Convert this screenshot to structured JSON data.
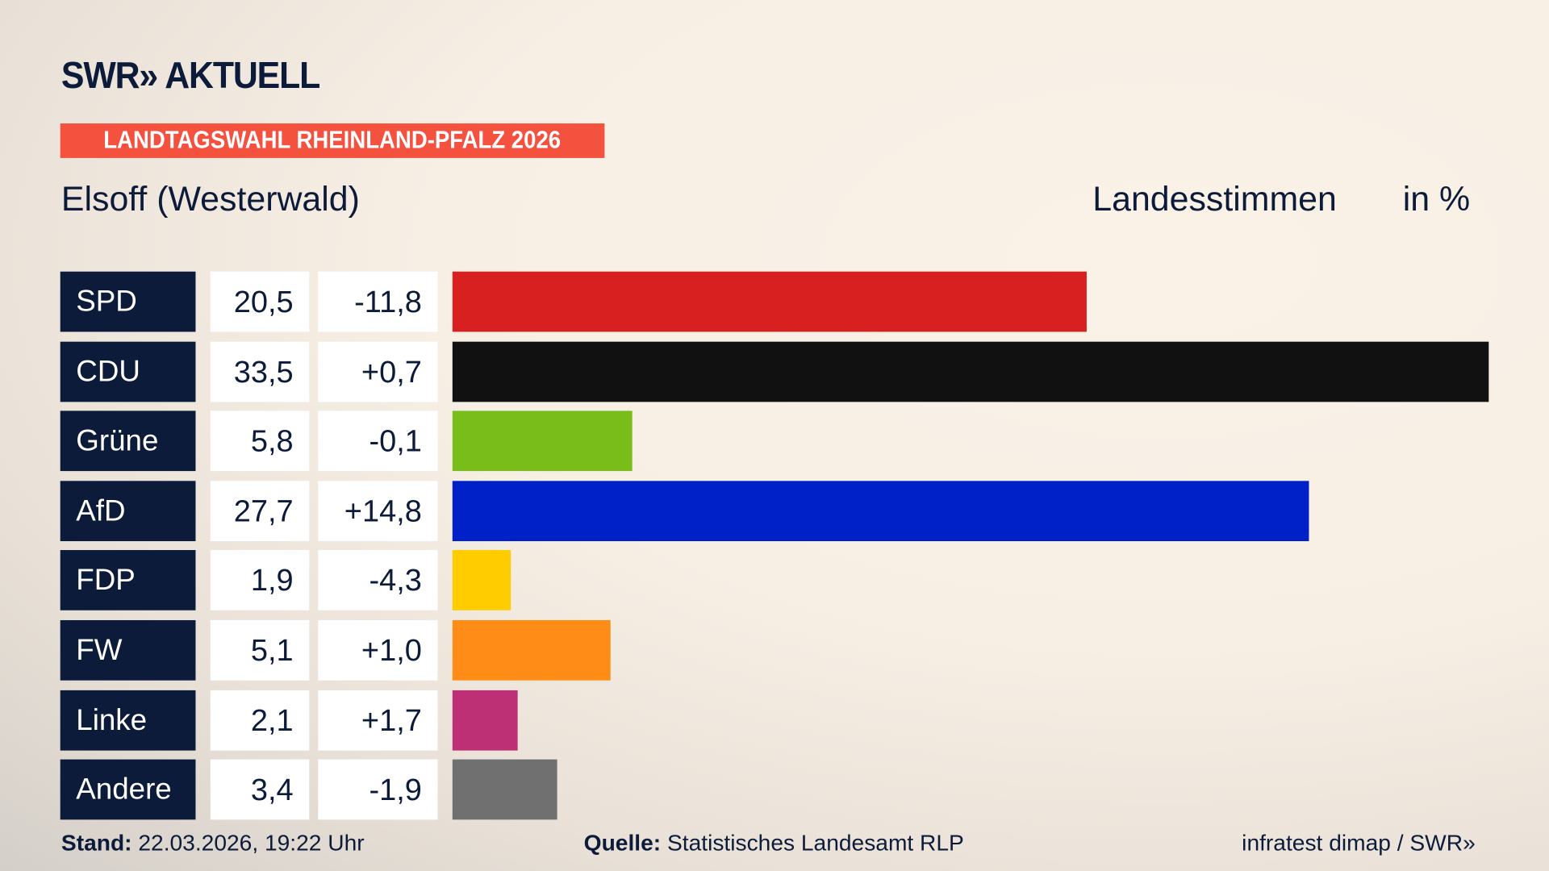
{
  "header": {
    "logo": "SWR» AKTUELL",
    "banner": "LANDTAGSWAHL RHEINLAND-PFALZ 2026",
    "place": "Elsoff (Westerwald)",
    "metric": "Landesstimmen",
    "unit": "in %"
  },
  "chart_data": {
    "type": "bar",
    "orientation": "horizontal",
    "categories": [
      "SPD",
      "CDU",
      "Grüne",
      "AfD",
      "FDP",
      "FW",
      "Linke",
      "Andere"
    ],
    "values": [
      "20,5",
      "33,5",
      "5,8",
      "27,7",
      "1,9",
      "5,1",
      "2,1",
      "3,4"
    ],
    "numeric_values": [
      20.5,
      33.5,
      5.8,
      27.7,
      1.9,
      5.1,
      2.1,
      3.4
    ],
    "changes": [
      "-11,8",
      "+0,7",
      "-0,1",
      "+14,8",
      "-4,3",
      "+1,0",
      "+1,7",
      "-1,9"
    ],
    "colors": [
      "#d82020",
      "#111111",
      "#79bd1b",
      "#0020c8",
      "#ffcc00",
      "#ff8c17",
      "#bd3075",
      "#707070"
    ],
    "xlim": [
      0,
      33.5
    ]
  },
  "footer": {
    "stand_label": "Stand:",
    "stand_value": "22.03.2026, 19:22 Uhr",
    "source_label": "Quelle:",
    "source_value": "Statistisches Landesamt RLP",
    "credit": "infratest dimap / SWR»"
  }
}
